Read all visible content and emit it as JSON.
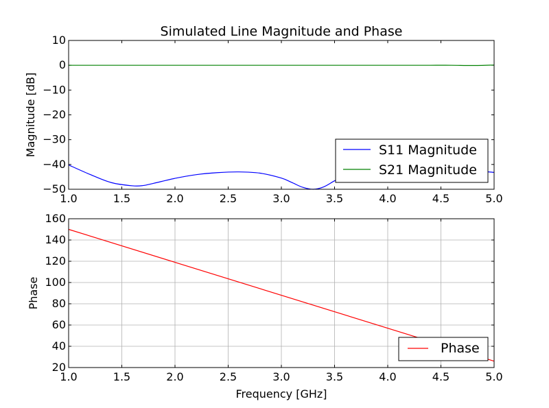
{
  "chart_data": [
    {
      "type": "line",
      "title": "Simulated Line Magnitude and Phase",
      "xlabel": "",
      "ylabel": "Magnitude [dB]",
      "xlim": [
        1.0,
        5.0
      ],
      "ylim": [
        -50,
        10
      ],
      "grid": false,
      "legend_position": "lower-right",
      "xticks": [
        "1.0",
        "1.5",
        "2.0",
        "2.5",
        "3.0",
        "3.5",
        "4.0",
        "4.5",
        "5.0"
      ],
      "yticks": [
        "10",
        "0",
        "−10",
        "−20",
        "−30",
        "−40",
        "−50"
      ],
      "x": [
        1.0,
        1.2,
        1.4,
        1.6,
        1.7,
        1.8,
        2.0,
        2.2,
        2.4,
        2.6,
        2.8,
        3.0,
        3.1,
        3.2,
        3.3,
        3.4,
        3.5,
        3.6,
        3.8,
        4.0,
        4.2,
        4.4,
        4.6,
        4.8,
        5.0
      ],
      "series": [
        {
          "name": "S11 Magnitude",
          "color": "#0000ff",
          "values": [
            -40.2,
            -44.0,
            -47.3,
            -48.6,
            -48.5,
            -47.6,
            -45.6,
            -44.1,
            -43.3,
            -43.0,
            -43.5,
            -45.5,
            -47.3,
            -49.2,
            -50.0,
            -49.0,
            -46.6,
            -44.5,
            -42.3,
            -41.4,
            -41.2,
            -41.4,
            -42.0,
            -42.5,
            -43.2
          ]
        },
        {
          "name": "S21 Magnitude",
          "color": "#008000",
          "values": [
            0.0,
            0.0,
            0.0,
            0.0,
            0.0,
            0.0,
            0.0,
            0.0,
            0.0,
            0.0,
            0.0,
            0.0,
            0.0,
            0.0,
            0.0,
            0.0,
            0.0,
            0.0,
            0.0,
            0.0,
            0.0,
            0.0,
            0.0,
            -0.1,
            0.1
          ]
        }
      ]
    },
    {
      "type": "line",
      "title": "",
      "xlabel": "Frequency [GHz]",
      "ylabel": "Phase",
      "xlim": [
        1.0,
        5.0
      ],
      "ylim": [
        20,
        160
      ],
      "grid": true,
      "legend_position": "lower-right",
      "xticks": [
        "1.0",
        "1.5",
        "2.0",
        "2.5",
        "3.0",
        "3.5",
        "4.0",
        "4.5",
        "5.0"
      ],
      "yticks": [
        "160",
        "140",
        "120",
        "100",
        "80",
        "60",
        "40",
        "20"
      ],
      "x": [
        1.0,
        5.0
      ],
      "series": [
        {
          "name": "Phase",
          "color": "#ff0000",
          "values": [
            150,
            26
          ]
        }
      ]
    }
  ]
}
